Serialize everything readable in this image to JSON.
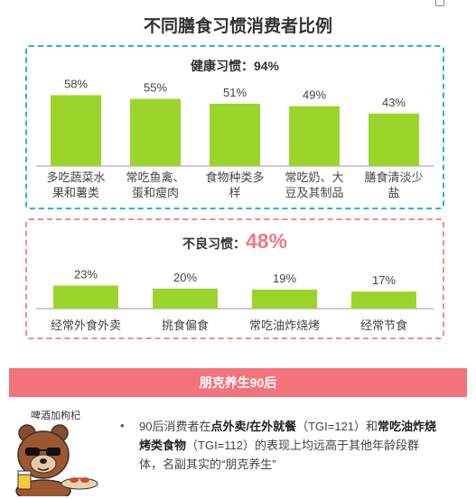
{
  "title": "不同膳食习惯消费者比例",
  "healthy": {
    "title_prefix": "健康习惯：",
    "title_value": "94%"
  },
  "bad": {
    "title_prefix": "不良习惯：",
    "title_value": "48%"
  },
  "chart_data": [
    {
      "type": "bar",
      "title": "健康习惯：94%",
      "categories": [
        [
          "多吃蔬菜水",
          "果和薯类"
        ],
        [
          "常吃鱼禽、",
          "蛋和瘦肉"
        ],
        [
          "食物种类多",
          "样"
        ],
        [
          "常吃奶、大",
          "豆及其制品"
        ],
        [
          "膳食清淡少",
          "盐"
        ]
      ],
      "values": [
        58,
        55,
        51,
        49,
        43
      ],
      "data_labels": [
        "58%",
        "55%",
        "51%",
        "49%",
        "43%"
      ],
      "unit": "%",
      "ylim": [
        0,
        65
      ],
      "bar_color": "#9bd52b",
      "grid": false
    },
    {
      "type": "bar",
      "title": "不良习惯：48%",
      "categories": [
        [
          "经常外食外卖"
        ],
        [
          "挑食偏食"
        ],
        [
          "常吃油炸烧烤"
        ],
        [
          "经常节食"
        ]
      ],
      "values": [
        23,
        20,
        19,
        17
      ],
      "data_labels": [
        "23%",
        "20%",
        "19%",
        "17%"
      ],
      "unit": "%",
      "ylim": [
        0,
        65
      ],
      "bar_color": "#9bd52b",
      "grid": false
    }
  ],
  "banner": {
    "text": "朋克养生90后"
  },
  "mascot": {
    "label": "啤酒加枸杞",
    "icon": "bear-with-sunglasses-icon"
  },
  "description": {
    "bullet": "•",
    "p1": "90后消费者在",
    "b1": "点外卖/在外就餐",
    "p2": "（TGI=121）和",
    "b2": "常吃油炸烧烤类食物",
    "p3": "（TGI=112）的表现上均远高于其他年龄段群体，名副其实的“朋克养生”"
  },
  "colors": {
    "accent_blue": "#28b6d0",
    "accent_pink": "#f2737c",
    "bar": "#9bd52b"
  }
}
